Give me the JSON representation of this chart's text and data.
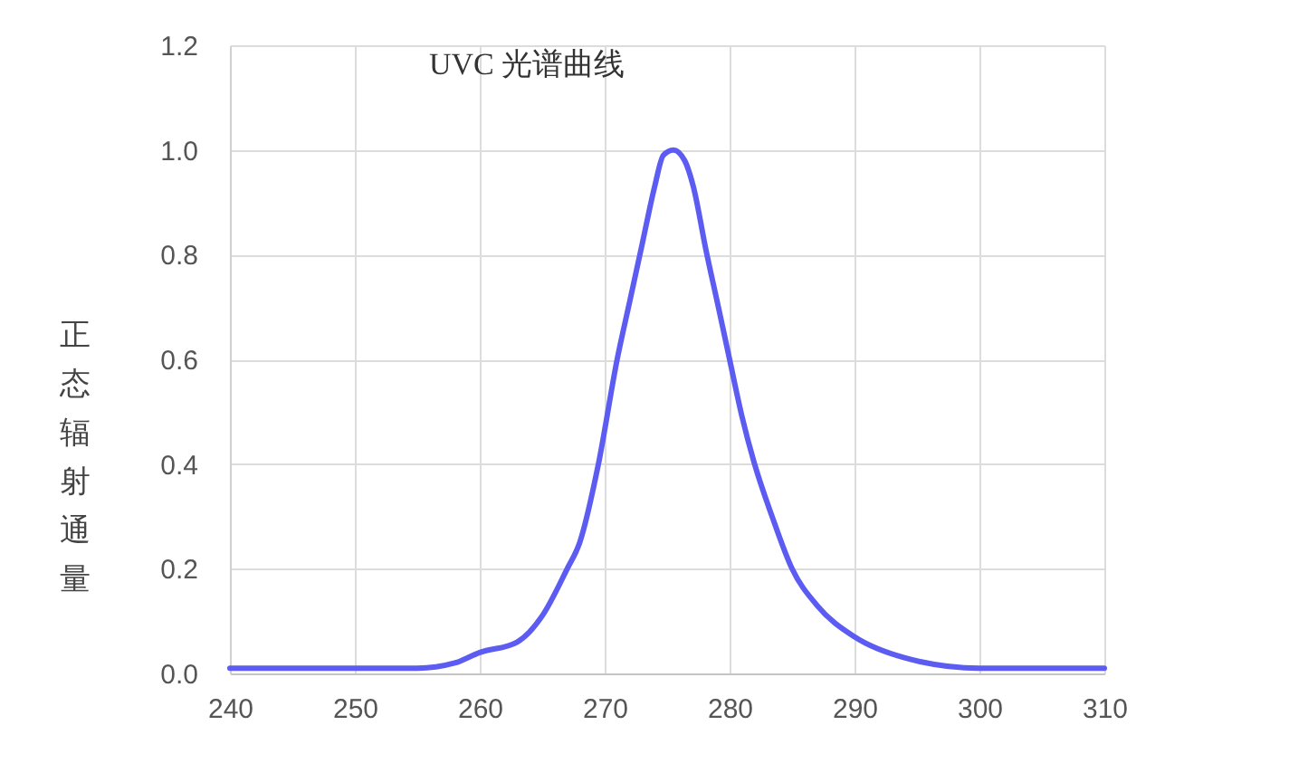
{
  "chart_data": {
    "type": "line",
    "title": "UVC 光谱曲线",
    "ylabel": "正态辐射通量",
    "x": [
      240,
      245,
      250,
      255,
      258,
      260,
      263,
      265,
      267,
      268,
      269.5,
      271,
      272,
      273,
      274,
      274.7,
      275.5,
      276.4,
      277.1,
      278.1,
      279.1,
      280,
      281,
      282,
      283.4,
      285,
      287,
      290,
      294,
      300,
      305,
      310
    ],
    "series": [
      {
        "color": "#5c5cf2",
        "values": [
          0.01,
          0.01,
          0.01,
          0.01,
          0.02,
          0.04,
          0.06,
          0.11,
          0.2,
          0.25,
          0.4,
          0.6,
          0.71,
          0.82,
          0.93,
          0.99,
          1.0,
          0.98,
          0.93,
          0.81,
          0.7,
          0.6,
          0.49,
          0.4,
          0.3,
          0.2,
          0.13,
          0.07,
          0.03,
          0.01,
          0.01,
          0.01
        ]
      }
    ],
    "xlim": [
      240,
      310
    ],
    "xticks": [
      240,
      250,
      260,
      270,
      280,
      290,
      300,
      310
    ],
    "ylim": [
      0,
      1.2
    ],
    "yticks": [
      {
        "value": 0,
        "label": "0.0"
      },
      0.2,
      0.4,
      0.6,
      0.8,
      {
        "value": 1,
        "label": "1.0"
      },
      1.2
    ],
    "grid": true
  }
}
